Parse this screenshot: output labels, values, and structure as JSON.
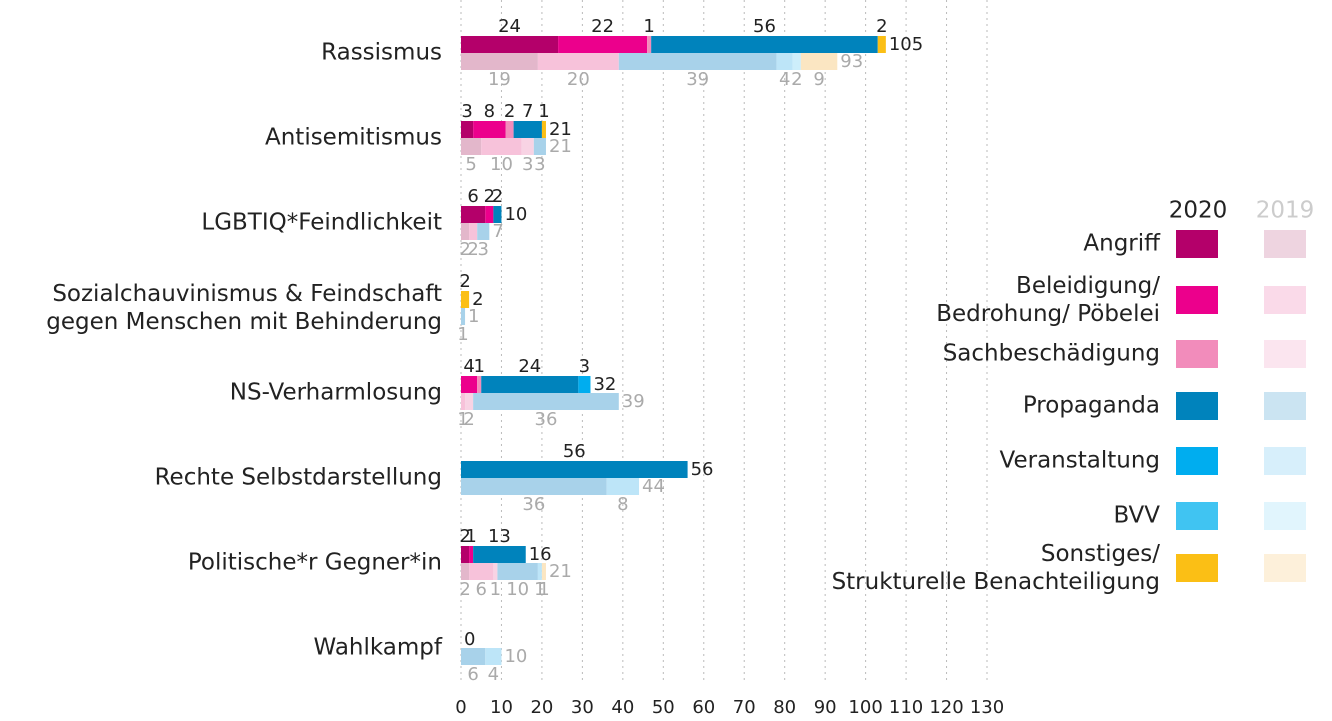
{
  "chart_data": {
    "type": "bar",
    "orientation": "horizontal",
    "stacked": true,
    "categories": [
      "Rassismus",
      "Antisemitismus",
      "LGBTIQ*Feindlichkeit",
      "Sozialchauvinismus & Feindschaft\ngegen Menschen mit Behinderung",
      "NS-Verharmlosung",
      "Rechte Selbstdarstellung",
      "Politische*r Gegner*in",
      "Wahlkampf"
    ],
    "years": [
      "2020",
      "2019"
    ],
    "series": [
      {
        "name": "Angriff",
        "color": "#b4006a",
        "values": [
          24,
          3,
          6,
          0,
          0,
          0,
          2,
          0
        ]
      },
      {
        "name": "Beleidigung/\nBedrohung/ Pöbelei",
        "color": "#ec008c",
        "values": [
          22,
          8,
          2,
          0,
          4,
          0,
          1,
          0
        ]
      },
      {
        "name": "Sachbeschädigung",
        "color": "#f28cbb",
        "values": [
          1,
          2,
          0,
          0,
          1,
          0,
          0,
          0
        ]
      },
      {
        "name": "Propaganda",
        "color": "#0083bc",
        "values": [
          56,
          7,
          2,
          0,
          24,
          56,
          13,
          0
        ]
      },
      {
        "name": "Veranstaltung",
        "color": "#00adef",
        "values": [
          0,
          0,
          0,
          0,
          3,
          0,
          0,
          0
        ]
      },
      {
        "name": "BVV",
        "color": "#40c4f2",
        "values": [
          0,
          0,
          0,
          0,
          0,
          0,
          0,
          0
        ]
      },
      {
        "name": "Sonstiges/\nStrukturelle Benachteiligung",
        "color": "#fbbf15",
        "values": [
          2,
          1,
          0,
          2,
          0,
          0,
          0,
          0
        ]
      }
    ],
    "series_2019": [
      {
        "color": "#e3b7cb",
        "values": [
          19,
          5,
          2,
          0,
          0,
          0,
          2,
          0
        ]
      },
      {
        "color": "#f7c2da",
        "values": [
          20,
          10,
          2,
          0,
          1,
          0,
          6,
          0
        ]
      },
      {
        "color": "#f8d3e4",
        "values": [
          0,
          3,
          0,
          0,
          2,
          0,
          1,
          0
        ]
      },
      {
        "color": "#a8d2ea",
        "values": [
          39,
          3,
          3,
          1,
          36,
          36,
          10,
          6
        ]
      },
      {
        "color": "#bde5f8",
        "values": [
          4,
          0,
          0,
          0,
          0,
          8,
          1,
          4
        ]
      },
      {
        "color": "#cdeefb",
        "values": [
          2,
          0,
          0,
          0,
          0,
          0,
          0,
          0
        ]
      },
      {
        "color": "#fbe6c2",
        "values": [
          9,
          0,
          0,
          0,
          0,
          0,
          1,
          0
        ]
      }
    ],
    "totals": [
      105,
      21,
      10,
      2,
      32,
      56,
      16,
      0
    ],
    "totals_2019": [
      93,
      21,
      7,
      1,
      39,
      44,
      21,
      10
    ],
    "xlim": [
      0,
      130
    ],
    "xticks": [
      0,
      10,
      20,
      30,
      40,
      50,
      60,
      70,
      80,
      90,
      100,
      110,
      120,
      130
    ],
    "grid": true
  }
}
